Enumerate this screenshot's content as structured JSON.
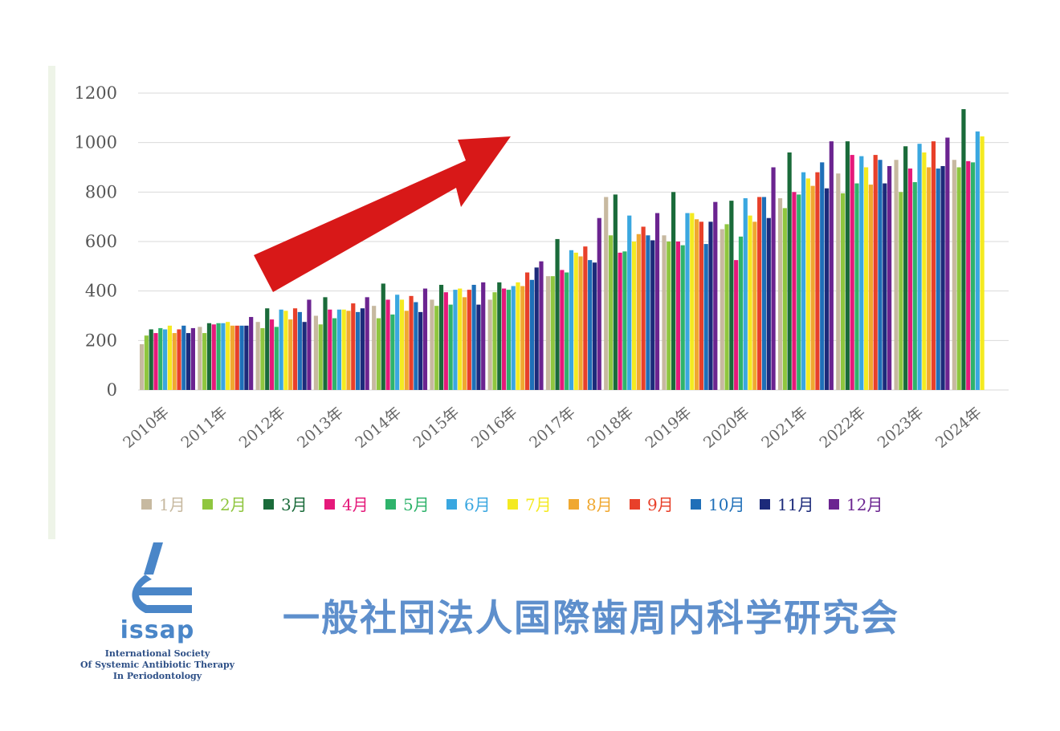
{
  "chart_data": {
    "type": "bar",
    "categories": [
      "2010年",
      "2011年",
      "2012年",
      "2013年",
      "2014年",
      "2015年",
      "2016年",
      "2017年",
      "2018年",
      "2019年",
      "2020年",
      "2021年",
      "2022年",
      "2023年",
      "2024年"
    ],
    "ylim": [
      0,
      1200
    ],
    "yticks": [
      0,
      200,
      400,
      600,
      800,
      1000,
      1200
    ],
    "grid": true,
    "legend_position": "bottom",
    "series": [
      {
        "name": "1月",
        "color": "#c7b9a0",
        "values": [
          185,
          255,
          275,
          300,
          340,
          365,
          365,
          460,
          780,
          625,
          650,
          775,
          875,
          930,
          930
        ]
      },
      {
        "name": "2月",
        "color": "#8fc63f",
        "values": [
          220,
          230,
          250,
          265,
          290,
          340,
          395,
          460,
          625,
          600,
          670,
          735,
          795,
          800,
          900
        ]
      },
      {
        "name": "3月",
        "color": "#1a6b3a",
        "values": [
          245,
          270,
          330,
          375,
          430,
          425,
          435,
          610,
          790,
          800,
          765,
          960,
          1005,
          985,
          1135
        ]
      },
      {
        "name": "4月",
        "color": "#e5197a",
        "values": [
          230,
          265,
          285,
          325,
          365,
          395,
          410,
          485,
          555,
          600,
          525,
          800,
          950,
          895,
          925
        ]
      },
      {
        "name": "5月",
        "color": "#2fb36b",
        "values": [
          250,
          270,
          255,
          290,
          305,
          345,
          405,
          475,
          560,
          585,
          620,
          790,
          835,
          840,
          920
        ]
      },
      {
        "name": "6月",
        "color": "#3aa7e0",
        "values": [
          245,
          270,
          325,
          325,
          385,
          405,
          420,
          565,
          705,
          715,
          775,
          880,
          945,
          995,
          1045
        ]
      },
      {
        "name": "7月",
        "color": "#f4ea21",
        "values": [
          260,
          275,
          320,
          325,
          365,
          410,
          435,
          555,
          600,
          715,
          705,
          855,
          900,
          960,
          1025
        ]
      },
      {
        "name": "8月",
        "color": "#f0a830",
        "values": [
          230,
          260,
          285,
          320,
          320,
          375,
          420,
          540,
          630,
          690,
          680,
          825,
          830,
          900,
          null
        ]
      },
      {
        "name": "9月",
        "color": "#e8402a",
        "values": [
          245,
          260,
          330,
          350,
          380,
          405,
          475,
          580,
          660,
          680,
          780,
          880,
          950,
          1005,
          null
        ]
      },
      {
        "name": "10月",
        "color": "#1f6fb8",
        "values": [
          260,
          260,
          315,
          315,
          355,
          425,
          445,
          525,
          625,
          590,
          780,
          920,
          930,
          895,
          null
        ]
      },
      {
        "name": "11月",
        "color": "#1c2a7a",
        "values": [
          230,
          260,
          275,
          330,
          315,
          345,
          495,
          515,
          605,
          680,
          695,
          815,
          835,
          905,
          null
        ]
      },
      {
        "name": "12月",
        "color": "#6b2490",
        "values": [
          250,
          295,
          365,
          375,
          410,
          435,
          520,
          695,
          715,
          760,
          900,
          1005,
          905,
          1020,
          null
        ]
      }
    ]
  },
  "organization": {
    "name_ja": "一般社団法人国際歯周内科学研究会",
    "logo_word": "issap",
    "logo_lines": [
      "International Society",
      "Of Systemic Antibiotic Therapy",
      "In Periodontology"
    ],
    "brand_color": "#5e8fcc"
  },
  "arrow_color": "#d81818"
}
